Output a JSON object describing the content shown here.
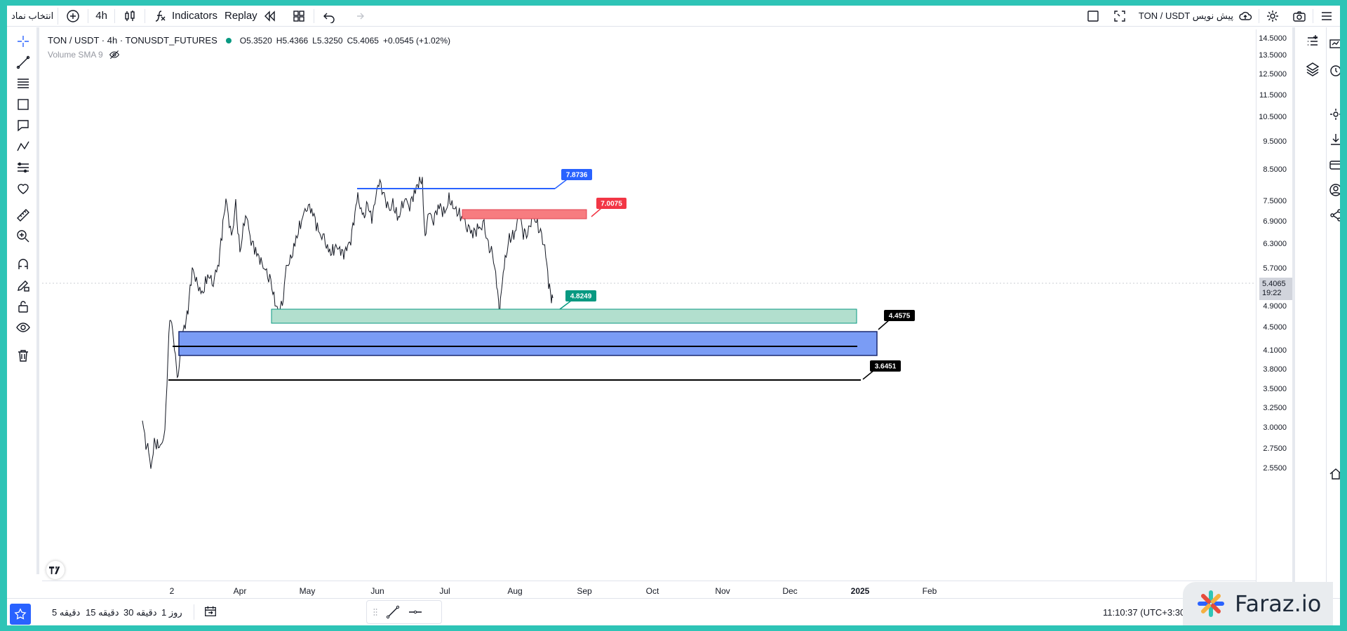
{
  "topbar": {
    "symbol_select": "انتخاب نماد",
    "timeframe": "4h",
    "indicators": "Indicators",
    "replay": "Replay",
    "title_right": "TON / USDT پیش نویس"
  },
  "legend": {
    "symbol": "TON / USDT · 4h · TONUSDT_FUTURES",
    "open": "O5.3520",
    "high": "H5.4366",
    "low": "L5.3250",
    "close": "C5.4065",
    "change": "+0.0545 (+1.02%)",
    "volume": "Volume SMA 9"
  },
  "price_axis": {
    "ticks": [
      "14.5000",
      "13.5000",
      "12.5000",
      "11.5000",
      "10.5000",
      "9.5000",
      "8.5000",
      "7.5000",
      "6.9000",
      "6.3000",
      "5.7000",
      "4.9000",
      "4.5000",
      "4.1000",
      "3.8000",
      "3.5000",
      "3.2500",
      "3.0000",
      "2.7500",
      "2.5500"
    ],
    "current_price": "5.4065",
    "countdown": "19:22"
  },
  "time_axis": {
    "ticks": [
      "2",
      "Apr",
      "May",
      "Jun",
      "Jul",
      "Aug",
      "Sep",
      "Oct",
      "Nov",
      "Dec",
      "2025",
      "Feb"
    ]
  },
  "drawings": {
    "blue_line_label": "7.8736",
    "red_zone_label": "7.0075",
    "green_zone_label": "4.8249",
    "blue_zone_label": "4.4575",
    "black_line_label": "3.6451",
    "colors": {
      "blue_line": "#2962ff",
      "red_zone": "#f77c80",
      "green_zone": "#b2dfce",
      "blue_zone": "#7a9cf5",
      "label_red": "#f23645",
      "label_green": "#089981",
      "label_blue": "#2962ff"
    }
  },
  "bottombar": {
    "timeframes": [
      "5 دقیقه",
      "15 دقیقه",
      "30 دقیقه",
      "1 روز"
    ],
    "clock": "11:10:37 (UTC+3:30)"
  },
  "watermark": "Faraz.io"
}
